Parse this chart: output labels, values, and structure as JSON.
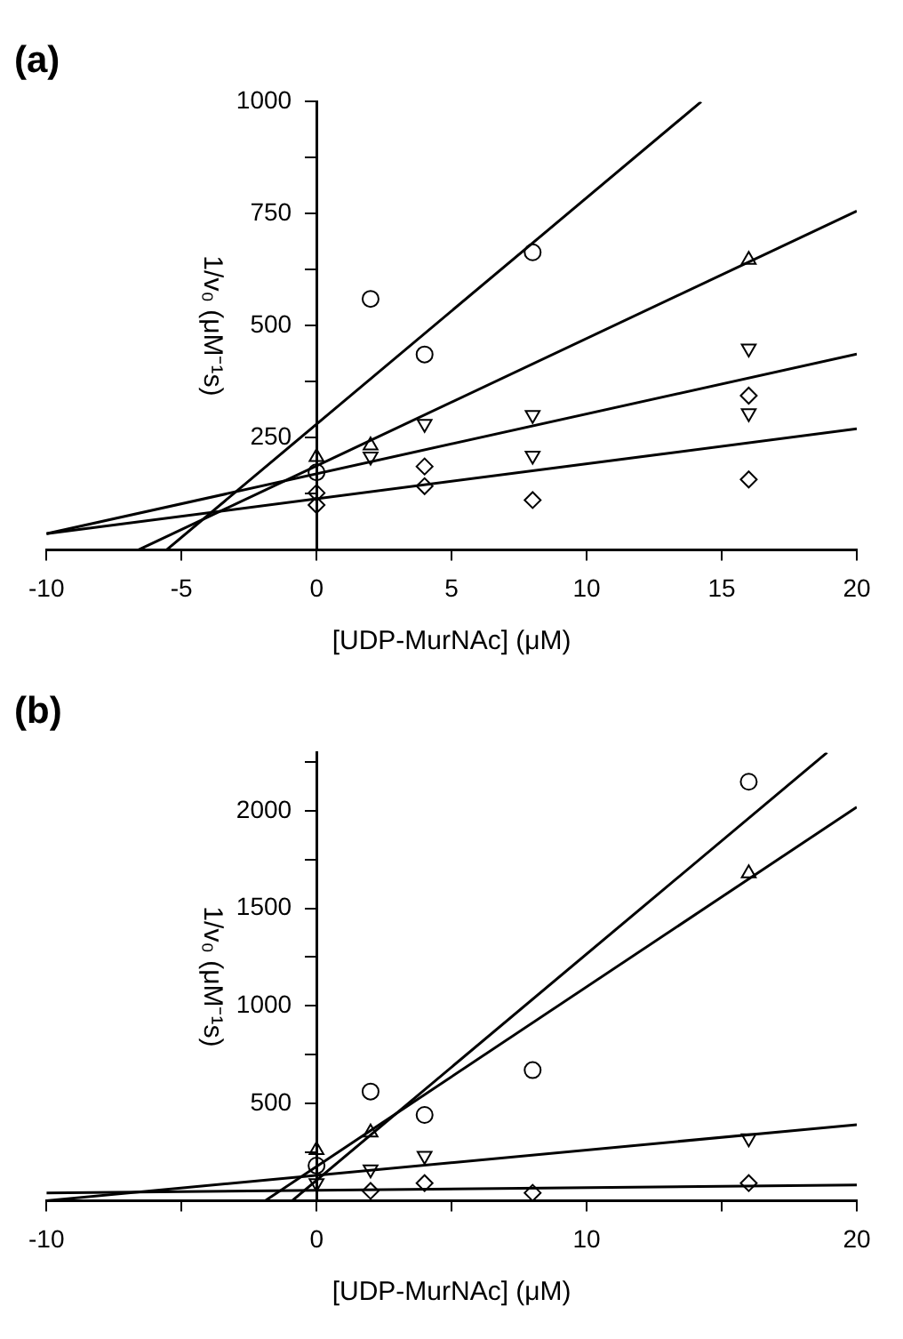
{
  "chart_data": [
    {
      "type": "scatter",
      "title": "(a)",
      "xlabel": "[UDP-MurNAc] (μM)",
      "ylabel": "1/v₀ (μM⁻¹s)",
      "xlim": [
        -10,
        20
      ],
      "xticks": [
        -10,
        -5,
        0,
        5,
        10,
        15,
        20
      ],
      "ylim": [
        0,
        1000
      ],
      "yticks": [
        {
          "value": 125,
          "label": null
        },
        250,
        {
          "value": 375,
          "label": null
        },
        500,
        {
          "value": 625,
          "label": null
        },
        750,
        {
          "value": 875,
          "label": null
        },
        1000
      ],
      "series": [
        {
          "color": "#000000",
          "marker": "circle",
          "x": [
            0,
            2,
            4,
            8
          ],
          "values": [
            173,
            560,
            436,
            664
          ]
        },
        {
          "color": "#000000",
          "marker": "triangle",
          "x": [
            0,
            2,
            16
          ],
          "values": [
            207,
            233,
            647
          ]
        },
        {
          "color": "#000000",
          "marker": "triangle_down",
          "x": [
            2,
            4,
            8,
            8,
            16,
            16
          ],
          "values": [
            208,
            281,
            301,
            210,
            449,
            305
          ]
        },
        {
          "color": "#000000",
          "marker": "diamond",
          "x": [
            0,
            0,
            4,
            4,
            8,
            16,
            16
          ],
          "values": [
            127,
            100,
            186,
            142,
            111,
            344,
            157
          ]
        },
        {
          "type": "line",
          "color": "#000000",
          "marker": "none",
          "x": [
            -5.55,
            14.24
          ],
          "values": [
            0,
            1000
          ]
        },
        {
          "type": "line",
          "color": "#000000",
          "marker": "none",
          "x": [
            -6.59,
            20
          ],
          "values": [
            0,
            756
          ]
        },
        {
          "type": "line",
          "color": "#000000",
          "marker": "none",
          "x": [
            -10,
            20
          ],
          "values": [
            36,
            437
          ]
        },
        {
          "type": "line",
          "color": "#000000",
          "marker": "none",
          "x": [
            -10,
            20
          ],
          "values": [
            36,
            270
          ]
        }
      ]
    },
    {
      "type": "scatter",
      "title": "(b)",
      "xlabel": "[UDP-MurNAc] (μM)",
      "ylabel": "1/v₀ (μM⁻¹s)",
      "xlim": [
        -10,
        20
      ],
      "xticks": [
        -10,
        {
          "value": -5,
          "label": null
        },
        0,
        {
          "value": 5,
          "label": null
        },
        10,
        {
          "value": 15,
          "label": null
        },
        20
      ],
      "ylim": [
        0,
        2300
      ],
      "yticks": [
        {
          "value": 250,
          "label": null
        },
        500,
        {
          "value": 750,
          "label": null
        },
        1000,
        {
          "value": 1250,
          "label": null
        },
        1500,
        {
          "value": 1750,
          "label": null
        },
        2000,
        {
          "value": 2250,
          "label": null
        }
      ],
      "series": [
        {
          "color": "#000000",
          "marker": "circle",
          "x": [
            0,
            2,
            4,
            8,
            16
          ],
          "values": [
            180,
            560,
            440,
            670,
            2150
          ]
        },
        {
          "color": "#000000",
          "marker": "triangle",
          "x": [
            0,
            2,
            16
          ],
          "values": [
            260,
            350,
            1680
          ]
        },
        {
          "color": "#000000",
          "marker": "triangle_down",
          "x": [
            0,
            2,
            4,
            16
          ],
          "values": [
            90,
            160,
            230,
            320
          ]
        },
        {
          "color": "#000000",
          "marker": "diamond",
          "x": [
            2,
            4,
            8,
            16
          ],
          "values": [
            50,
            90,
            40,
            90
          ]
        },
        {
          "type": "line",
          "color": "#000000",
          "marker": "none",
          "x": [
            -0.9,
            18.9
          ],
          "values": [
            0,
            2300
          ]
        },
        {
          "type": "line",
          "color": "#000000",
          "marker": "none",
          "x": [
            -1.9,
            20
          ],
          "values": [
            0,
            2020
          ]
        },
        {
          "type": "line",
          "color": "#000000",
          "marker": "none",
          "x": [
            -10,
            20
          ],
          "values": [
            0,
            390
          ]
        },
        {
          "type": "line",
          "color": "#000000",
          "marker": "none",
          "x": [
            -10,
            20
          ],
          "values": [
            40,
            80
          ]
        }
      ]
    }
  ]
}
